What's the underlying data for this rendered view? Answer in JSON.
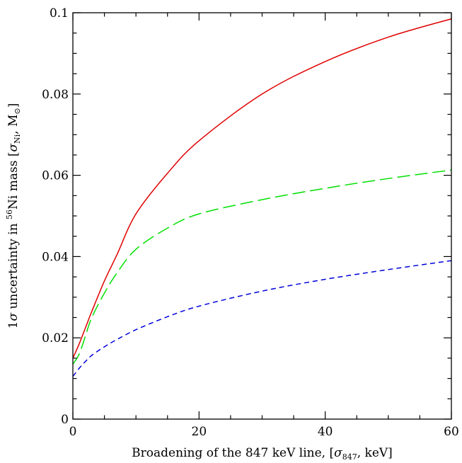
{
  "chart_data": {
    "type": "line",
    "xlabel": {
      "prefix": "Broadening of the 847 keV line, [",
      "symbol": "σ",
      "subscript": "847",
      "suffix": ", keV]"
    },
    "ylabel": {
      "prefix": "1",
      "sigma": "σ",
      "middle": " uncertainty in ",
      "superscript": "56",
      "element": "Ni mass [",
      "symbol": "σ",
      "subscript": "Ni",
      "sep": ", M",
      "sun": "⊙",
      "suffix": "]"
    },
    "xlim": [
      0,
      60
    ],
    "ylim": [
      0,
      0.1
    ],
    "xticks": [
      0,
      20,
      40,
      60
    ],
    "xtick_labels": [
      "0",
      "20",
      "40",
      "60"
    ],
    "yticks": [
      0,
      0.02,
      0.04,
      0.06,
      0.08,
      0.1
    ],
    "ytick_labels": [
      "0",
      "0.02",
      "0.04",
      "0.06",
      "0.08",
      "0.1"
    ],
    "grid": false,
    "series": [
      {
        "color": "#e00000",
        "style": "solid",
        "x": [
          0,
          1,
          2,
          3,
          5,
          7,
          10,
          15,
          20,
          30,
          40,
          50,
          60
        ],
        "y": [
          0.015,
          0.0185,
          0.0225,
          0.0265,
          0.034,
          0.0405,
          0.0505,
          0.0605,
          0.0685,
          0.08,
          0.088,
          0.094,
          0.0985
        ]
      },
      {
        "color": "#00e000",
        "style": "long-dash",
        "x": [
          0,
          1,
          2,
          3,
          5,
          7,
          10,
          15,
          20,
          30,
          40,
          50,
          60
        ],
        "y": [
          0.0135,
          0.016,
          0.0205,
          0.025,
          0.031,
          0.036,
          0.0418,
          0.047,
          0.0505,
          0.054,
          0.0568,
          0.0592,
          0.0613
        ]
      },
      {
        "color": "#0000dd",
        "style": "short-dash",
        "x": [
          0,
          1,
          2,
          3,
          5,
          7,
          10,
          15,
          20,
          30,
          40,
          50,
          60
        ],
        "y": [
          0.0105,
          0.0125,
          0.0142,
          0.0157,
          0.0178,
          0.0196,
          0.022,
          0.0252,
          0.0278,
          0.0315,
          0.0344,
          0.0368,
          0.039
        ]
      }
    ]
  }
}
